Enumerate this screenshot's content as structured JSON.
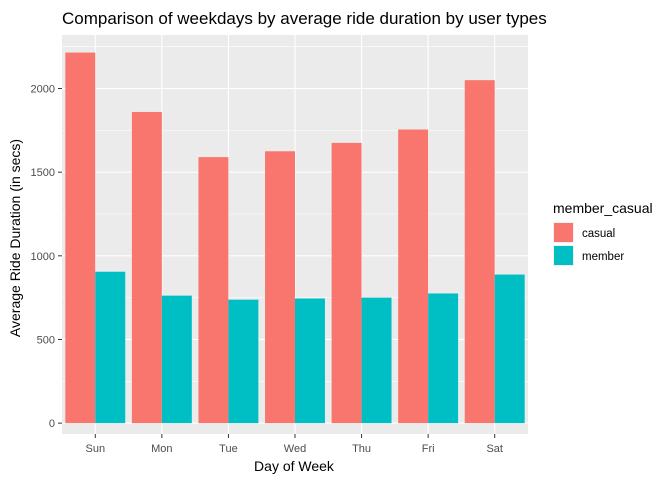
{
  "chart_data": {
    "type": "bar",
    "title": "Comparison of weekdays by average ride duration by user types",
    "xlabel": "Day of Week",
    "ylabel": "Average Ride Duration (in secs)",
    "categories": [
      "Sun",
      "Mon",
      "Tue",
      "Wed",
      "Thu",
      "Fri",
      "Sat"
    ],
    "series": [
      {
        "name": "casual",
        "color": "#F8766D",
        "values": [
          2215,
          1860,
          1590,
          1625,
          1675,
          1755,
          2050
        ]
      },
      {
        "name": "member",
        "color": "#00BFC4",
        "values": [
          905,
          762,
          738,
          745,
          750,
          775,
          888
        ]
      }
    ],
    "ylim": [
      -65,
      2320
    ],
    "yticks": [
      0,
      500,
      1000,
      1500,
      2000
    ],
    "ytick_labels": [
      "0",
      "500",
      "1000",
      "1500",
      "2000"
    ],
    "legend": {
      "title": "member_casual",
      "position": "right"
    },
    "grid": true,
    "panel_color": "#EBEBEB",
    "grid_color": "#FFFFFF"
  }
}
